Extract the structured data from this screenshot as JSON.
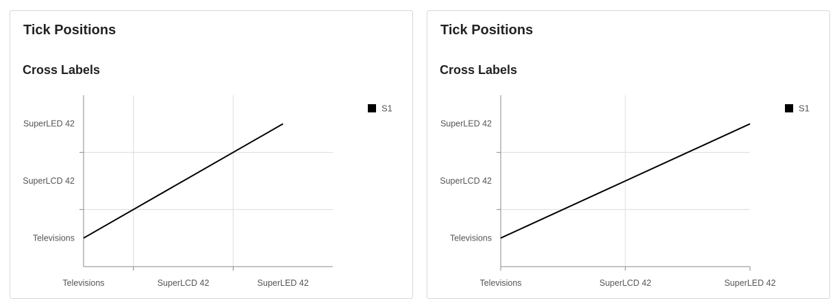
{
  "cards": [
    {
      "title": "Tick Positions",
      "chart_data": {
        "type": "line",
        "title": "Cross Labels",
        "categories": [
          "Televisions",
          "SuperLCD 42",
          "SuperLED 42"
        ],
        "x_ticks_between_labels": true,
        "series": [
          {
            "name": "S1",
            "x": [
              "Televisions",
              "SuperLCD 42",
              "SuperLED 42"
            ],
            "y": [
              "Televisions",
              "SuperLCD 42",
              "SuperLED 42"
            ]
          }
        ],
        "grid": true,
        "legend": "top-right"
      }
    },
    {
      "title": "Tick Positions",
      "chart_data": {
        "type": "line",
        "title": "Cross Labels",
        "categories": [
          "Televisions",
          "SuperLCD 42",
          "SuperLED 42"
        ],
        "x_ticks_between_labels": false,
        "series": [
          {
            "name": "S1",
            "x": [
              "Televisions",
              "SuperLCD 42",
              "SuperLED 42"
            ],
            "y": [
              "Televisions",
              "SuperLCD 42",
              "SuperLED 42"
            ]
          }
        ],
        "grid": true,
        "legend": "top-right"
      }
    }
  ]
}
